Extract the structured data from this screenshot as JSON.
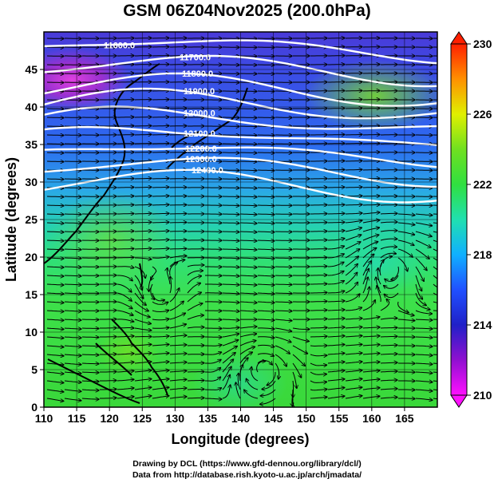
{
  "title": "GSM 06Z04Nov2025 (200.0hPa)",
  "xaxis": {
    "label": "Longitude (degrees)",
    "ticks": [
      "110",
      "115",
      "120",
      "125",
      "130",
      "135",
      "140",
      "145",
      "150",
      "155",
      "160",
      "165"
    ],
    "range": [
      110,
      170
    ]
  },
  "yaxis": {
    "label": "Latitude (degrees)",
    "ticks": [
      "0",
      "5",
      "10",
      "15",
      "20",
      "25",
      "30",
      "35",
      "40",
      "45"
    ],
    "range": [
      0,
      50
    ]
  },
  "colorbar": {
    "ticks": [
      "210",
      "214",
      "218",
      "222",
      "226",
      "230"
    ],
    "range": [
      210,
      230
    ],
    "colors": [
      "#ff00ff",
      "#c000c0",
      "#2020d0",
      "#2050ff",
      "#10c0ff",
      "#20e0a0",
      "#30e030",
      "#80e020",
      "#f0f000",
      "#ffa000",
      "#ff3000"
    ]
  },
  "contours": [
    {
      "label": "11600.0"
    },
    {
      "label": "11700.0"
    },
    {
      "label": "11800.0"
    },
    {
      "label": "11900.0"
    },
    {
      "label": "12000.0"
    },
    {
      "label": "12100.0"
    },
    {
      "label": "12200.0"
    },
    {
      "label": "12300.0"
    },
    {
      "label": "12400.0"
    }
  ],
  "footer": {
    "line1": "Drawing by DCL (https://www.gfd-dennou.org/library/dcl/)",
    "line2": "Data from http://database.rish.kyoto-u.ac.jp/arch/jmadata/"
  }
}
